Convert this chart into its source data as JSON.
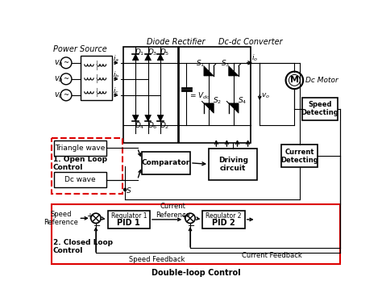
{
  "bg_color": "#ffffff",
  "fig_width": 4.74,
  "fig_height": 3.79,
  "dpi": 100,
  "titles": {
    "diode_rect": "Diode Rectifier",
    "dcdc_conv": "Dc-dc Converter",
    "power_src": "Power Source",
    "dc_motor": "Dc Motor",
    "double_loop": "Double-loop Control"
  }
}
